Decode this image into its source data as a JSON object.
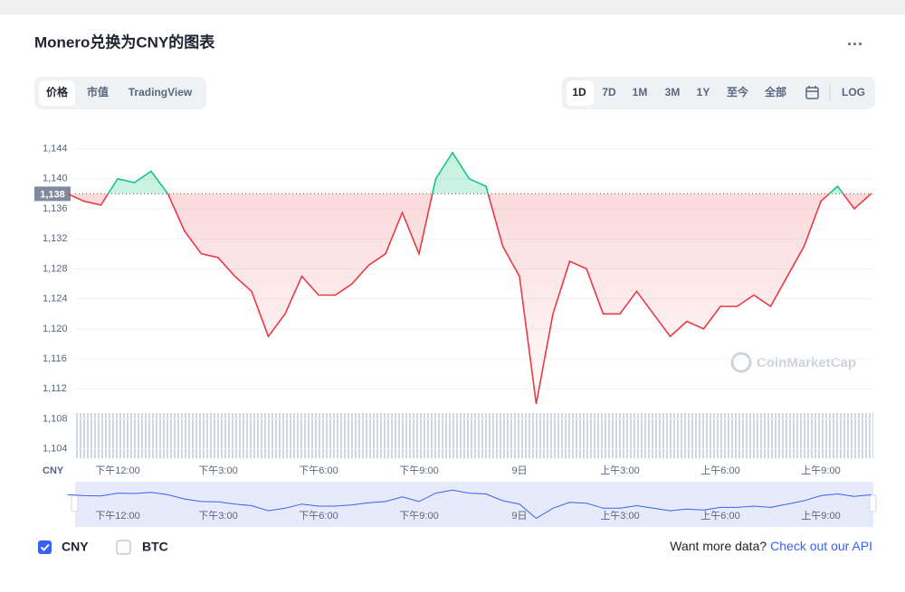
{
  "ui": {
    "title": "Monero兑换为CNY的图表",
    "tabs": [
      "价格",
      "市值",
      "TradingView"
    ],
    "ranges": [
      "1D",
      "7D",
      "1M",
      "3M",
      "1Y",
      "至今",
      "全部"
    ],
    "log_button": "LOG",
    "other_series": "BTC",
    "more_data": "Want more data?",
    "api_link": "Check out our API",
    "watermark": "CoinMarketCap"
  },
  "chart_data": {
    "type": "line",
    "y_unit": "CNY",
    "categories": [
      null,
      null,
      null,
      "下午12:00",
      null,
      null,
      null,
      null,
      null,
      "下午3:00",
      null,
      null,
      null,
      null,
      null,
      "下午6:00",
      null,
      null,
      null,
      null,
      null,
      "下午9:00",
      null,
      null,
      null,
      null,
      null,
      "9日",
      null,
      null,
      null,
      null,
      null,
      "上午3:00",
      null,
      null,
      null,
      null,
      null,
      "上午6:00",
      null,
      null,
      null,
      null,
      null,
      "上午9:00",
      null,
      null,
      null
    ],
    "series": [
      {
        "name": "CNY",
        "color": "#ea3943",
        "up_color": "#16c784",
        "values": [
          1138,
          1137,
          1136.5,
          1140,
          1139.5,
          1141,
          1138,
          1133,
          1130,
          1129.5,
          1127,
          1125,
          1119,
          1122,
          1127,
          1124.5,
          1124.5,
          1126,
          1128.5,
          1130,
          1135.5,
          1130,
          1140,
          1143.5,
          1140,
          1139,
          1131,
          1127,
          1110,
          1122,
          1129,
          1128,
          1122,
          1122,
          1125,
          1122,
          1119,
          1121,
          1120,
          1123,
          1123,
          1124.5,
          1123,
          1127,
          1131,
          1137,
          1139,
          1136,
          1138
        ]
      }
    ],
    "reference": {
      "value": 1138,
      "label": "1,138"
    },
    "ylim": [
      1103,
      1146
    ],
    "yticks": [
      {
        "value": 1104,
        "label": "1,104"
      },
      {
        "value": 1108,
        "label": "1,108"
      },
      {
        "value": 1112,
        "label": "1,112"
      },
      {
        "value": 1116,
        "label": "1,116"
      },
      {
        "value": 1120,
        "label": "1,120"
      },
      {
        "value": 1124,
        "label": "1,124"
      },
      {
        "value": 1128,
        "label": "1,128"
      },
      {
        "value": 1132,
        "label": "1,132"
      },
      {
        "value": 1136,
        "label": "1,136"
      },
      {
        "value": 1140,
        "label": "1,140"
      },
      {
        "value": 1144,
        "label": "1,144"
      }
    ],
    "grid": true
  }
}
